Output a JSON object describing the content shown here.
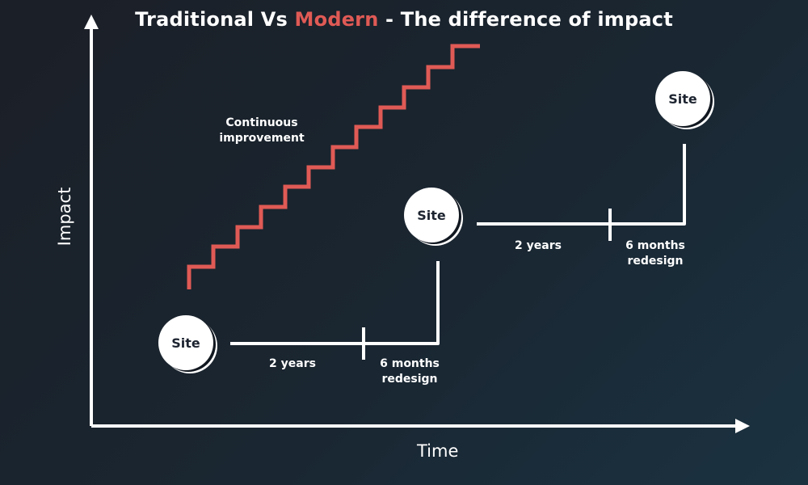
{
  "title": {
    "part1": "Traditional Vs ",
    "accent": "Modern",
    "part2": " - The difference of impact"
  },
  "axes": {
    "x_label": "Time",
    "y_label": "Impact"
  },
  "labels": {
    "continuous_line1": "Continuous",
    "continuous_line2": "improvement",
    "years_1": "2 years",
    "redesign_1_line1": "6 months",
    "redesign_1_line2": "redesign",
    "years_2": "2 years",
    "redesign_2_line1": "6 months",
    "redesign_2_line2": "redesign"
  },
  "sites": {
    "site_1": "Site",
    "site_2": "Site",
    "site_3": "Site"
  },
  "colors": {
    "accent": "#e05a55",
    "foreground": "#ffffff",
    "background": "#1a2631"
  }
}
